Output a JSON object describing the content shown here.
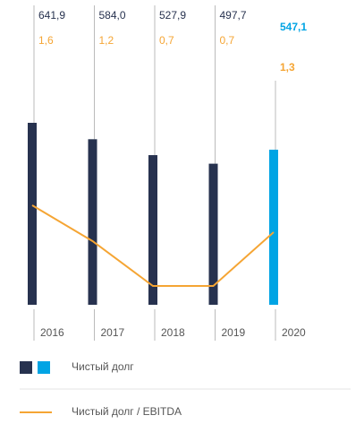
{
  "chart_data": {
    "type": "bar-line",
    "categories": [
      "2016",
      "2017",
      "2018",
      "2019",
      "2020"
    ],
    "series": [
      {
        "name": "Чистый долг",
        "type": "bar",
        "color": "#27324f",
        "highlight_color": "#00a4e4",
        "values": [
          641.9,
          584.0,
          527.9,
          497.7,
          547.1
        ],
        "value_labels": [
          "641,9",
          "584,0",
          "527,9",
          "497,7",
          "547,1"
        ]
      },
      {
        "name": "Чистый долг / EBITDA",
        "type": "line",
        "color": "#f5a534",
        "values": [
          1.6,
          1.2,
          0.7,
          0.7,
          1.3
        ],
        "value_labels": [
          "1,6",
          "1,2",
          "0,7",
          "0,7",
          "1,3"
        ]
      }
    ]
  }
}
